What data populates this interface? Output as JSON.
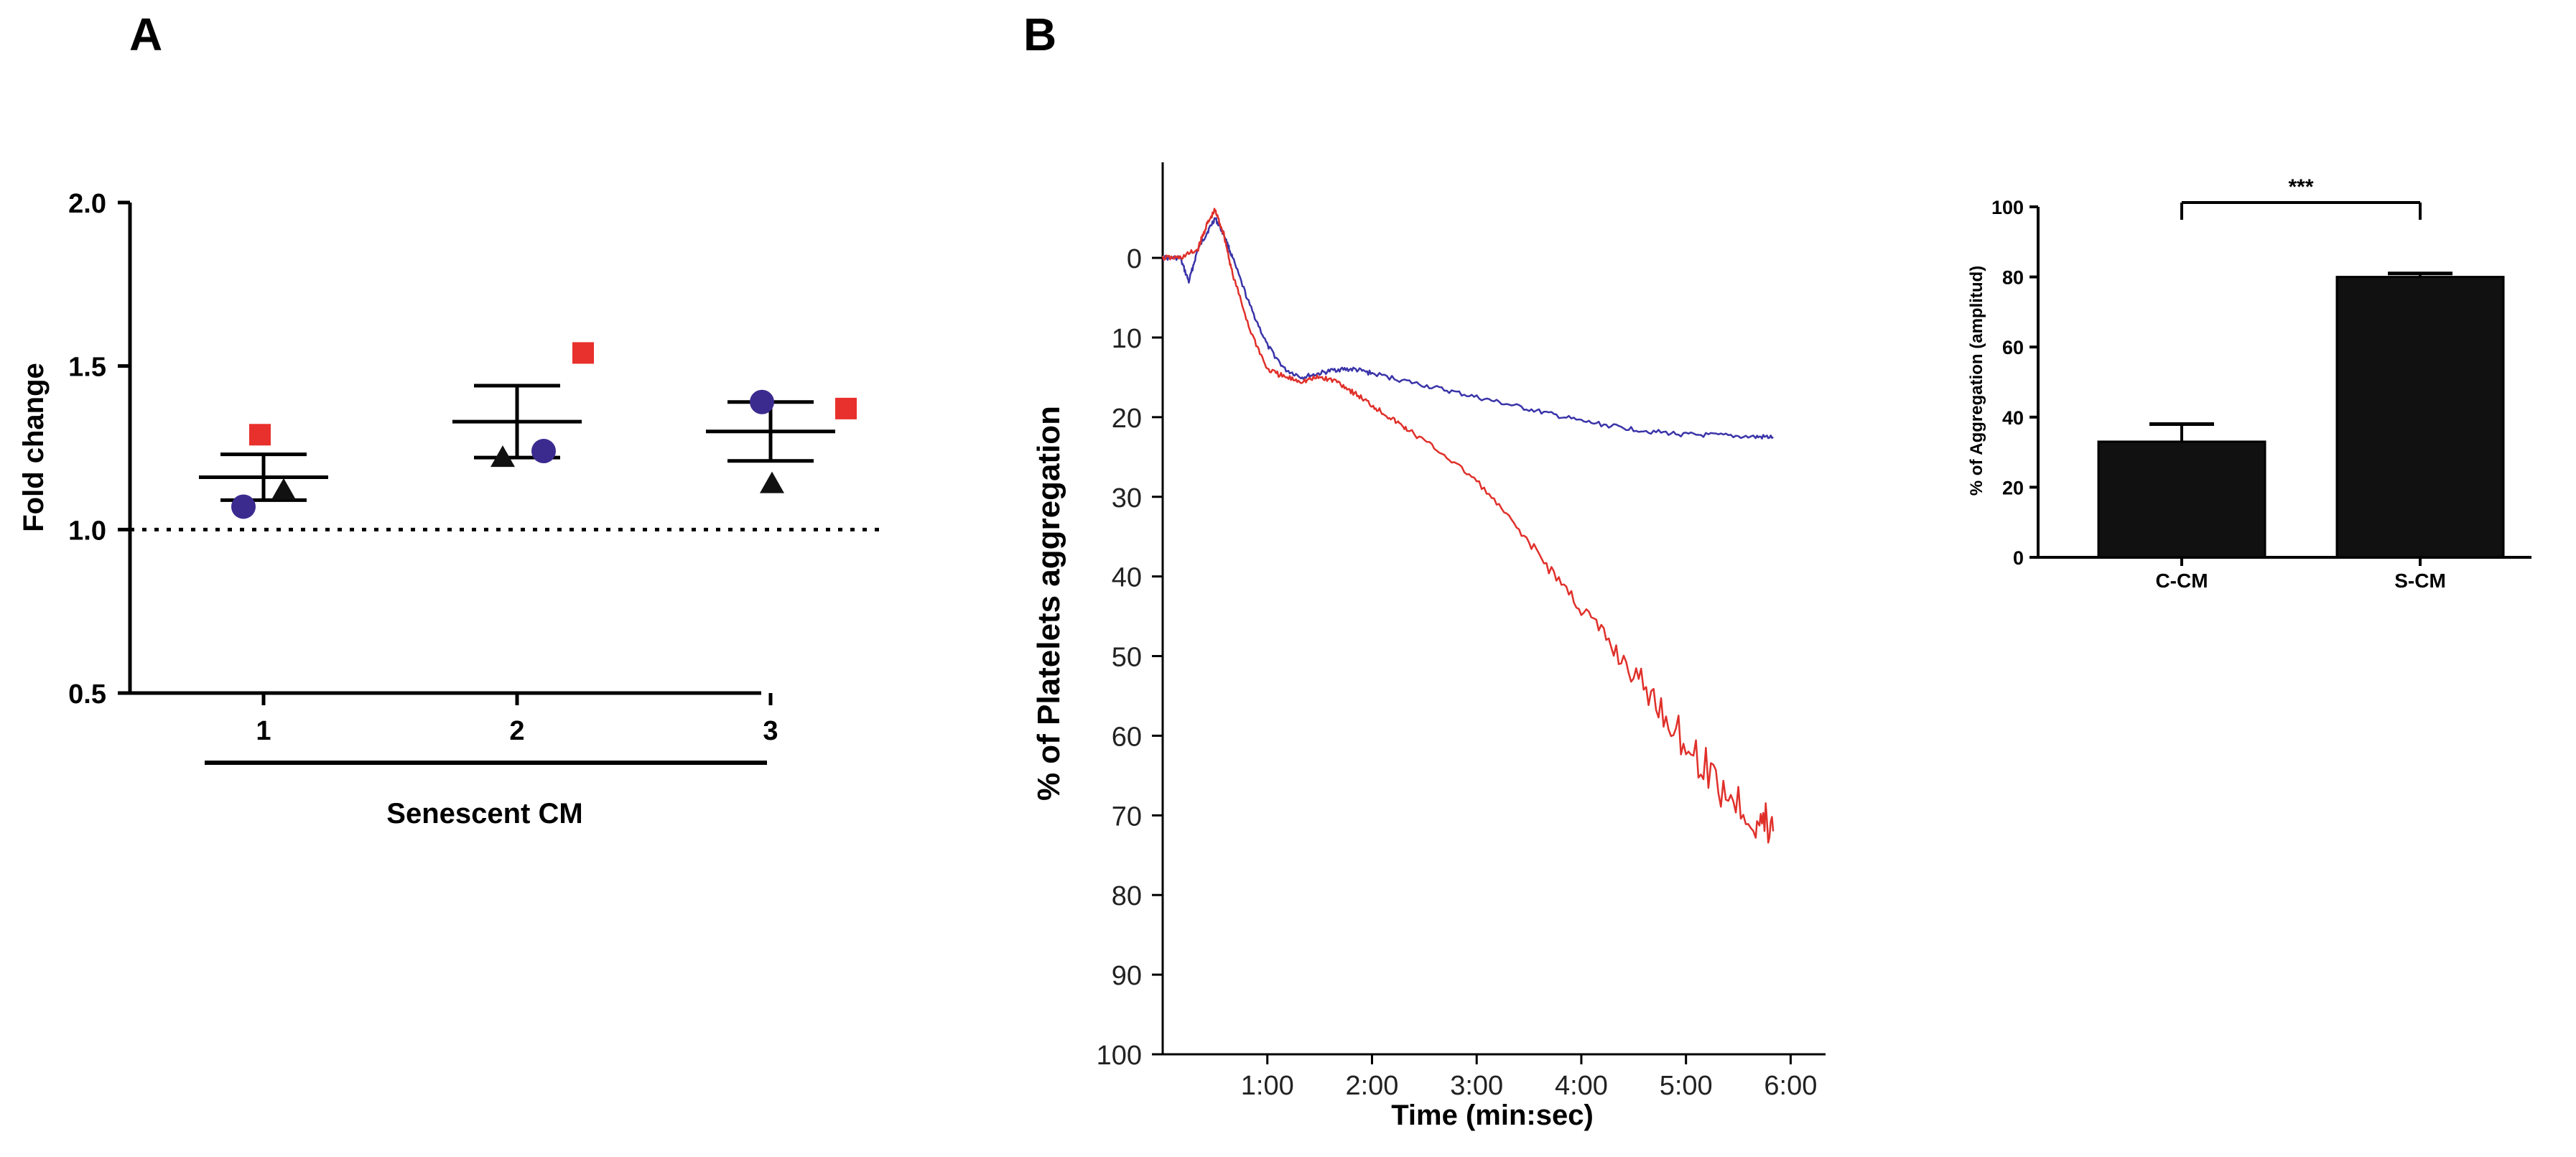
{
  "panels": {
    "a": "A",
    "b": "B"
  },
  "chart_data": [
    {
      "id": "A",
      "type": "scatter",
      "title": "",
      "xlabel": "Senescent CM",
      "ylabel": "Fold change",
      "categories": [
        "1",
        "2",
        "3"
      ],
      "ylim": [
        0.5,
        2.0
      ],
      "yticks": [
        "0.5",
        "1.0",
        "1.5",
        "2.0"
      ],
      "reference_line": 1.0,
      "series": [
        {
          "name": "square",
          "marker": "square",
          "color": "#e8302c",
          "values": [
            1.29,
            1.54,
            1.37
          ]
        },
        {
          "name": "circle",
          "marker": "circle",
          "color": "#3b2b8f",
          "values": [
            1.07,
            1.24,
            1.39
          ]
        },
        {
          "name": "triangle",
          "marker": "triangle",
          "color": "#111111",
          "values": [
            1.12,
            1.22,
            1.14
          ]
        }
      ],
      "mean": [
        1.16,
        1.33,
        1.3
      ],
      "sem": [
        0.07,
        0.11,
        0.09
      ]
    },
    {
      "id": "B-trace",
      "type": "line",
      "xlabel": "Time (min:sec)",
      "ylabel": "% of Platelets aggregation",
      "xticks": [
        "1:00",
        "2:00",
        "3:00",
        "4:00",
        "5:00",
        "6:00"
      ],
      "yticks": [
        "0",
        "10",
        "20",
        "30",
        "40",
        "50",
        "60",
        "70",
        "80",
        "90",
        "100"
      ],
      "xlim": [
        0,
        380
      ],
      "ylim": [
        100,
        -12
      ],
      "series": [
        {
          "name": "blue",
          "color": "#3a34a8",
          "x": [
            0,
            10,
            15,
            20,
            25,
            30,
            35,
            40,
            50,
            60,
            70,
            80,
            90,
            100,
            110,
            120,
            140,
            160,
            180,
            200,
            220,
            240,
            260,
            280,
            300,
            320,
            340,
            350
          ],
          "y": [
            0,
            0,
            3,
            -1,
            -3,
            -5,
            -3,
            0,
            6,
            11,
            14,
            15,
            14.5,
            14,
            14,
            14.5,
            15.5,
            16.5,
            17.5,
            18.5,
            19.5,
            20.5,
            21.2,
            21.8,
            22.2,
            22.3,
            22.5,
            22.5
          ]
        },
        {
          "name": "red",
          "color": "#e0302a",
          "x": [
            0,
            10,
            20,
            25,
            30,
            35,
            40,
            50,
            60,
            70,
            80,
            90,
            100,
            110,
            120,
            130,
            140,
            160,
            180,
            200,
            220,
            240,
            260,
            280,
            300,
            320,
            340,
            350
          ],
          "y": [
            0,
            0,
            -1,
            -4,
            -6,
            -3,
            2,
            9,
            14,
            15,
            15.5,
            15,
            15.5,
            17,
            18.5,
            20,
            21.5,
            24.5,
            28,
            33,
            38.5,
            44,
            49.5,
            55,
            61,
            66.5,
            70.5,
            72
          ]
        }
      ]
    },
    {
      "id": "B-bar",
      "type": "bar",
      "ylabel": "% of Aggregation (amplitud)",
      "categories": [
        "C-CM",
        "S-CM"
      ],
      "values": [
        33,
        80
      ],
      "errors": [
        5,
        1
      ],
      "ylim": [
        0,
        100
      ],
      "yticks": [
        "0",
        "20",
        "40",
        "60",
        "80",
        "100"
      ],
      "annotation": "***"
    }
  ]
}
